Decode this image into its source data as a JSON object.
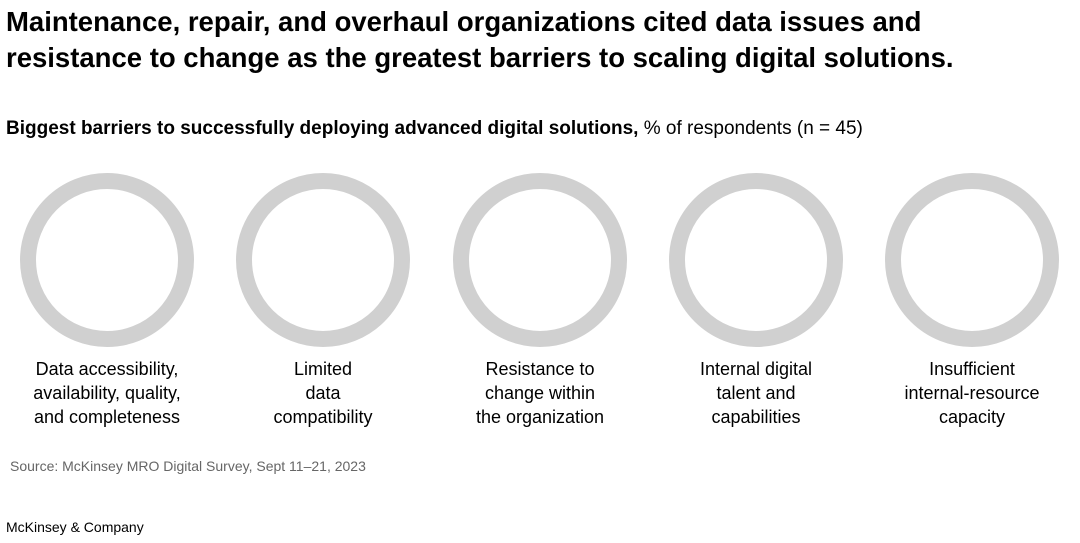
{
  "chart_data": {
    "type": "donut",
    "title": "Maintenance, repair, and overhaul organizations cited data issues and resistance to change as the greatest barriers to scaling digital solutions.",
    "subtitle": "Biggest barriers to successfully deploying advanced digital solutions,",
    "unit": "% of respondents (n = 45)",
    "categories": [
      "Data accessibility,\navailability, quality,\nand completeness",
      "Limited\ndata\ncompatibility",
      "Resistance to\nchange within\nthe organization",
      "Internal digital\ntalent and\ncapabilities",
      "Insufficient\ninternal-resource\ncapacity"
    ],
    "ring_color": "#d0d0d0",
    "source": "Source: McKinsey MRO Digital Survey, Sept 11–21, 2023",
    "brand": "McKinsey & Company"
  }
}
